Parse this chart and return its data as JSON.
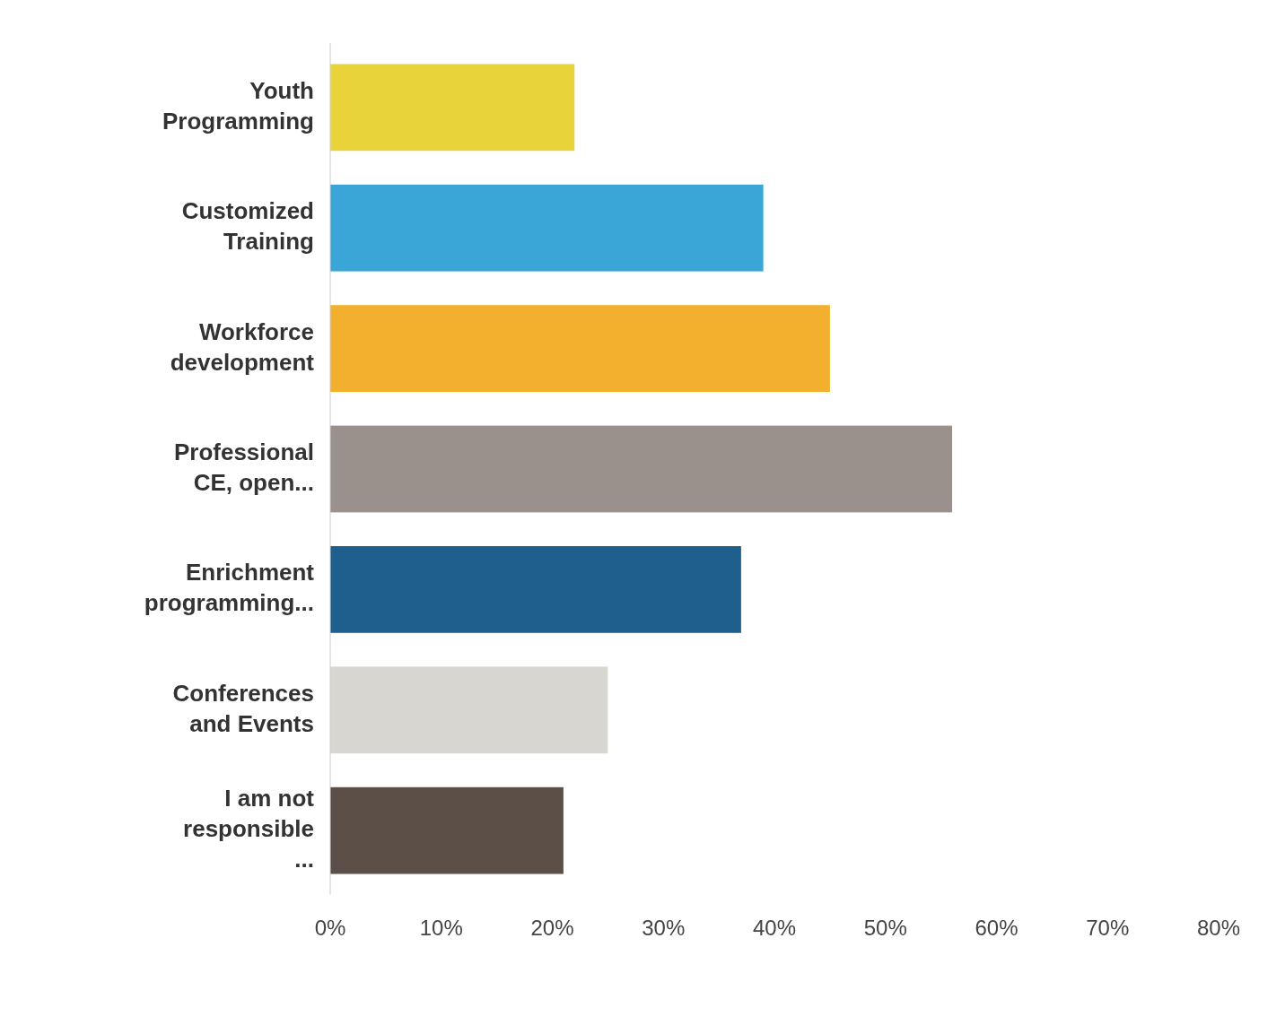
{
  "chart_data": {
    "type": "bar",
    "orientation": "horizontal",
    "categories": [
      "Youth Programming",
      "Customized Training",
      "Workforce development",
      "Professional CE, open...",
      "Enrichment programming...",
      "Conferences and Events",
      "I am not responsible ..."
    ],
    "values": [
      22,
      39,
      45,
      56,
      37,
      25,
      21
    ],
    "colors": [
      "#e8d33a",
      "#3aa6d8",
      "#f2b02e",
      "#9a918c",
      "#1f5f8e",
      "#d8d6d0",
      "#5c4f48"
    ],
    "xlim": [
      0,
      80
    ],
    "xticks": [
      {
        "value": 0,
        "label": "0%"
      },
      {
        "value": 10,
        "label": "10%"
      },
      {
        "value": 20,
        "label": "20%"
      },
      {
        "value": 30,
        "label": "30%"
      },
      {
        "value": 40,
        "label": "40%"
      },
      {
        "value": 50,
        "label": "50%"
      },
      {
        "value": 60,
        "label": "60%"
      },
      {
        "value": 70,
        "label": "70%"
      },
      {
        "value": 80,
        "label": "80%"
      }
    ],
    "grid": false
  }
}
